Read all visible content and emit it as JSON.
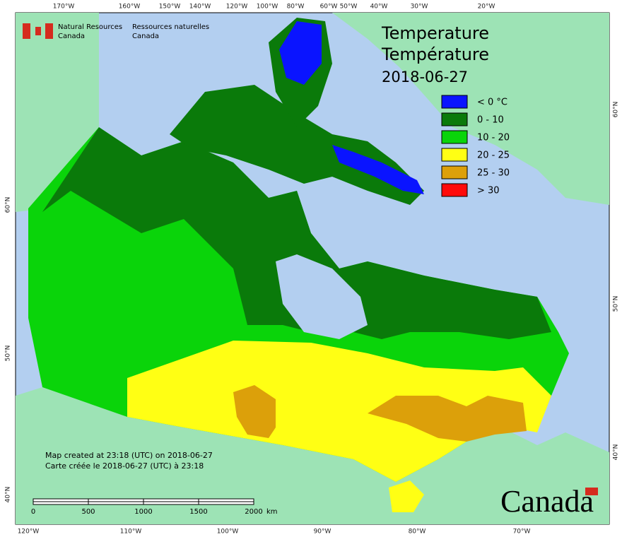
{
  "header": {
    "org_en": [
      "Natural Resources",
      "Canada"
    ],
    "org_fr": [
      "Ressources naturelles",
      "Canada"
    ]
  },
  "title": {
    "lines": [
      "Temperature",
      "Température"
    ],
    "date": "2018-06-27"
  },
  "legend": [
    {
      "label": "< 0 °C",
      "color": "#0a14ff"
    },
    {
      "label": "0 - 10",
      "color": "#0a7a0a"
    },
    {
      "label": "10 - 20",
      "color": "#0ad40a"
    },
    {
      "label": "20 - 25",
      "color": "#ffff14"
    },
    {
      "label": "25 - 30",
      "color": "#dca00a"
    },
    {
      "label": "> 30",
      "color": "#ff0a0a"
    }
  ],
  "graticule": {
    "top": [
      "170°W",
      "160°W",
      "150°W",
      "140°W",
      "120°W",
      "100°W",
      "80°W",
      "60°W",
      "50°W",
      "40°W",
      "30°W",
      "20°W"
    ],
    "bottom": [
      "120°W",
      "110°W",
      "100°W",
      "90°W",
      "80°W",
      "70°W"
    ],
    "left": [
      "60°N",
      "50°N",
      "40°N"
    ],
    "right": [
      "60°N",
      "50°N",
      "40°N"
    ]
  },
  "notes": [
    "Map created at 23:18 (UTC) on 2018-06-27",
    "Carte créée le 2018-06-27 (UTC) à 23:18"
  ],
  "scale_bar": {
    "labels": [
      "0",
      "500",
      "1000",
      "1500",
      "2000"
    ],
    "unit": "km"
  },
  "wordmark": "Canada"
}
